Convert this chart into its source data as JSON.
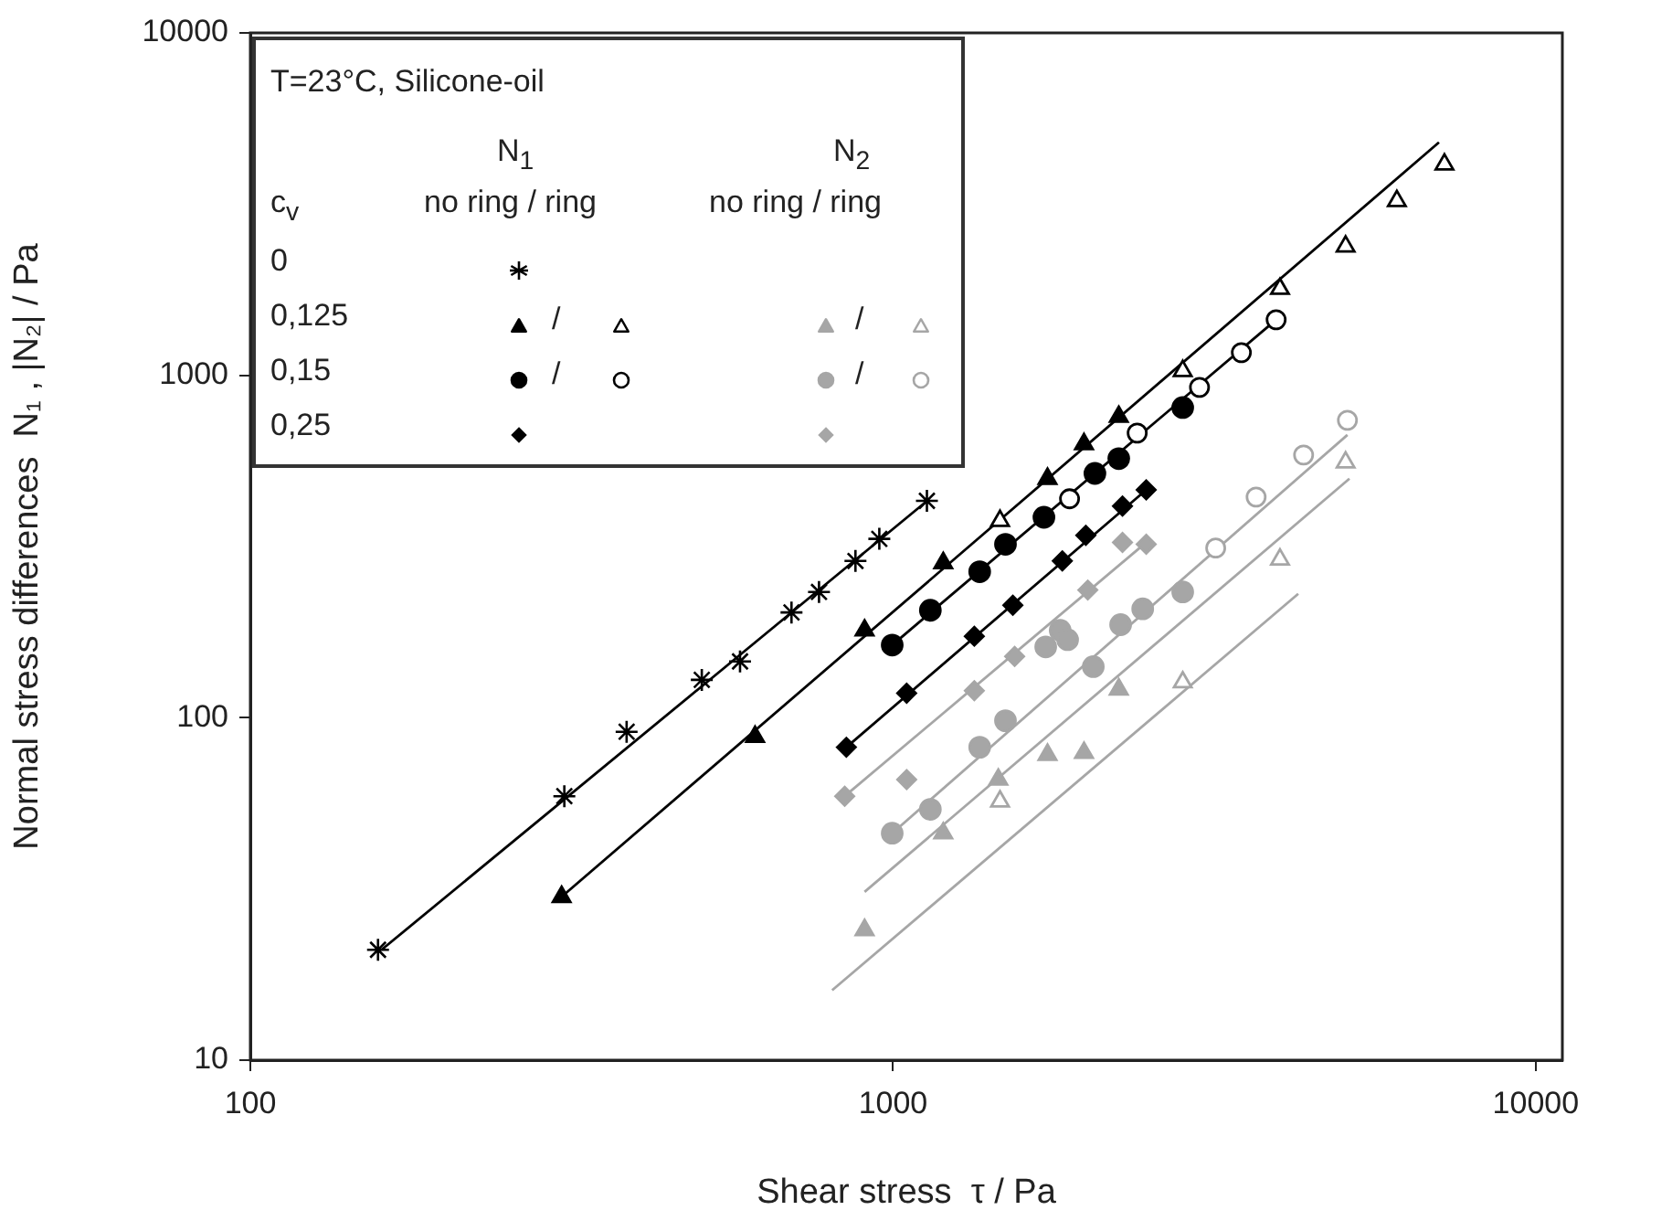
{
  "chart_data": {
    "type": "scatter",
    "xlabel": "Shear stress  τ / Pa",
    "ylabel": "Normal stress differences  N₁ , |N₂| / Pa",
    "log": "xy",
    "xlim": [
      100,
      11000
    ],
    "xticks": [
      100,
      1000,
      10000
    ],
    "ylim": [
      10,
      10000
    ],
    "yticks": [
      10,
      100,
      1000,
      10000
    ],
    "annotations": [
      "T=23°C, Silicone-oil",
      "N$_{1}$",
      "no ring / ring",
      "N$_{2}$",
      "no ring / ring",
      "c$_{v}$",
      "0",
      "0,125",
      "0,15",
      "0,25",
      "/",
      "/",
      "/",
      "/"
    ],
    "series": [
      {
        "type": "scatter",
        "marker": "cross",
        "color": "#000000",
        "x": [
          158,
          308,
          385,
          504,
          578,
          695,
          767,
          874,
          952,
          1129
        ],
        "values": [
          21,
          59,
          91,
          129,
          146,
          203,
          233,
          287,
          333,
          430
        ]
      },
      {
        "type": "scatter",
        "marker": "triangle",
        "color": "#000000",
        "x": [
          305,
          610,
          903,
          1197,
          1739,
          1982,
          2245
        ],
        "values": [
          30,
          88,
          180,
          283,
          499,
          630,
          757
        ]
      },
      {
        "type": "scatter",
        "marker": "triangle-open",
        "color": "#000000",
        "x": [
          1467,
          2823,
          4000,
          5060,
          6080,
          7210
        ],
        "values": [
          376,
          1030,
          1790,
          2380,
          3230,
          4130
        ]
      },
      {
        "type": "scatter",
        "marker": "circle",
        "color": "#000000",
        "x": [
          997,
          1143,
          1364,
          1496,
          1717,
          2061,
          2245,
          2823
        ],
        "values": [
          163,
          206,
          267,
          321,
          385,
          517,
          571,
          805
        ]
      },
      {
        "type": "scatter",
        "marker": "circle-open",
        "color": "#000000",
        "x": [
          1882,
          2398,
          2998,
          3483,
          3945
        ],
        "values": [
          436,
          678,
          922,
          1165,
          1453
        ]
      },
      {
        "type": "scatter",
        "marker": "diamond",
        "color": "#000000",
        "x": [
          846,
          1050,
          1338,
          1536,
          1834,
          1995,
          2275,
          2477
        ],
        "values": [
          82,
          118,
          173,
          213,
          287,
          341,
          415,
          463
        ]
      },
      {
        "type": "scatter",
        "marker": "triangle",
        "color": "#a6a6a6",
        "x": [
          903,
          1197,
          1458,
          1739,
          1982,
          2245
        ],
        "values": [
          24,
          46,
          66,
          78,
          79,
          121
        ]
      },
      {
        "type": "scatter",
        "marker": "triangle-open",
        "color": "#a6a6a6",
        "x": [
          1467,
          2823,
          4000,
          5060
        ],
        "values": [
          57,
          127,
          290,
          557
        ]
      },
      {
        "type": "scatter",
        "marker": "circle",
        "color": "#a6a6a6",
        "x": [
          997,
          1143,
          1364,
          1496,
          1728,
          1820,
          1869,
          2049,
          2260,
          2446,
          2823
        ],
        "values": [
          46,
          54,
          82,
          98,
          161,
          180,
          169,
          141,
          187,
          208,
          233
        ]
      },
      {
        "type": "scatter",
        "marker": "circle-open",
        "color": "#a6a6a6",
        "x": [
          3177,
          3672,
          4353,
          5093
        ],
        "values": [
          313,
          441,
          585,
          739
        ]
      },
      {
        "type": "scatter",
        "marker": "diamond",
        "color": "#a6a6a6",
        "x": [
          841,
          1050,
          1338,
          1546,
          2009,
          2275,
          2477
        ],
        "values": [
          59,
          66,
          120,
          151,
          236,
          325,
          321
        ]
      },
      {
        "type": "line",
        "marker": "none",
        "color": "#000000",
        "x": [
          160,
          1130
        ],
        "values": [
          21,
          430
        ]
      },
      {
        "type": "line",
        "marker": "none",
        "color": "#000000",
        "x": [
          305,
          7070
        ],
        "values": [
          30,
          4790
        ]
      },
      {
        "type": "line",
        "marker": "none",
        "color": "#000000",
        "x": [
          997,
          3945
        ],
        "values": [
          163,
          1453
        ]
      },
      {
        "type": "line",
        "marker": "none",
        "color": "#000000",
        "x": [
          846,
          2477
        ],
        "values": [
          82,
          463
        ]
      },
      {
        "type": "line",
        "marker": "none",
        "color": "#a6a6a6",
        "x": [
          841,
          2500
        ],
        "values": [
          59,
          330
        ]
      },
      {
        "type": "line",
        "marker": "none",
        "color": "#a6a6a6",
        "x": [
          997,
          5093
        ],
        "values": [
          46,
          670
        ]
      },
      {
        "type": "line",
        "marker": "none",
        "color": "#a6a6a6",
        "x": [
          903,
          5130
        ],
        "values": [
          31,
          499
        ]
      },
      {
        "type": "line",
        "marker": "none",
        "color": "#a6a6a6",
        "x": [
          804,
          4270
        ],
        "values": [
          16,
          230
        ]
      }
    ]
  }
}
